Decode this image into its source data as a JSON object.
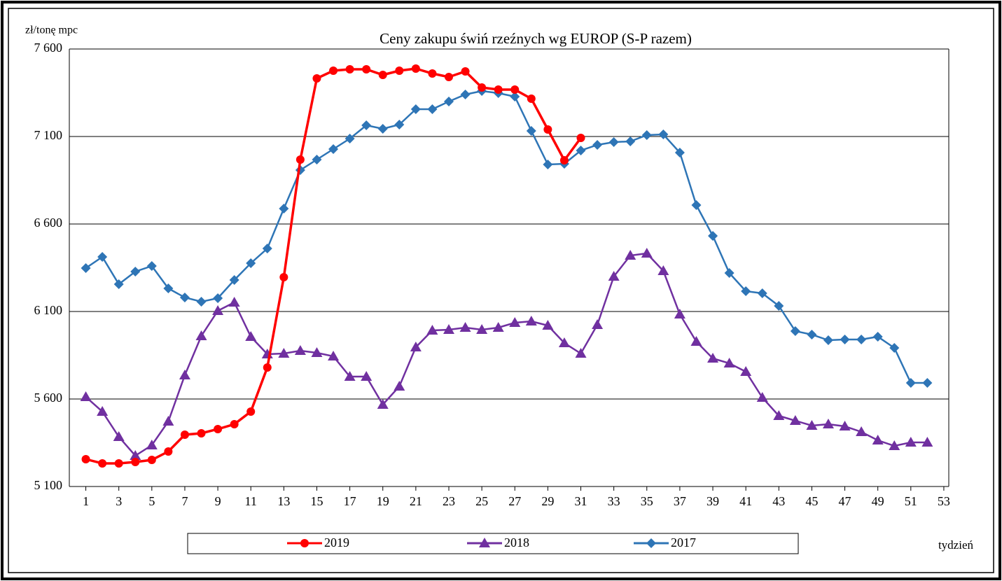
{
  "chart_data": {
    "type": "line",
    "title": "Ceny zakupu świń rzeźnych wg EUROP (S-P razem)",
    "y_label": "zł/tonę  mpc",
    "x_label": "tydzień",
    "x": [
      1,
      2,
      3,
      4,
      5,
      6,
      7,
      8,
      9,
      10,
      11,
      12,
      13,
      14,
      15,
      16,
      17,
      18,
      19,
      20,
      21,
      22,
      23,
      24,
      25,
      26,
      27,
      28,
      29,
      30,
      31,
      32,
      33,
      34,
      35,
      36,
      37,
      38,
      39,
      40,
      41,
      42,
      43,
      44,
      45,
      46,
      47,
      48,
      49,
      50,
      51,
      52
    ],
    "xlim": [
      0,
      53.3
    ],
    "xticks": [
      1,
      3,
      5,
      7,
      9,
      11,
      13,
      15,
      17,
      19,
      21,
      23,
      25,
      27,
      29,
      31,
      33,
      35,
      37,
      39,
      41,
      43,
      45,
      47,
      49,
      51,
      53
    ],
    "ylim": [
      5100,
      7600
    ],
    "yticks": [
      {
        "value": 5100,
        "label": "5 100"
      },
      {
        "value": 5600,
        "label": "5 600"
      },
      {
        "value": 6100,
        "label": "6 100"
      },
      {
        "value": 6600,
        "label": "6 600"
      },
      {
        "value": 7100,
        "label": "7 100"
      },
      {
        "value": 7600,
        "label": "7 600"
      }
    ],
    "grid": true,
    "legend": "bottom",
    "series": [
      {
        "name": "2019",
        "color": "#ff0000",
        "marker": "circle",
        "values": [
          5256,
          5232,
          5232,
          5240,
          5252,
          5300,
          5396,
          5404,
          5428,
          5456,
          5528,
          5780,
          6296,
          6968,
          7432,
          7476,
          7484,
          7484,
          7452,
          7476,
          7488,
          7460,
          7440,
          7472,
          7380,
          7368,
          7368,
          7316,
          7140,
          6964,
          7092,
          null,
          null,
          null,
          null,
          null,
          null,
          null,
          null,
          null,
          null,
          null,
          null,
          null,
          null,
          null,
          null,
          null,
          null,
          null,
          null,
          null
        ]
      },
      {
        "name": "2018",
        "color": "#7030a0",
        "marker": "triangle",
        "values": [
          5612,
          5528,
          5384,
          5276,
          5336,
          5472,
          5736,
          5960,
          6104,
          6152,
          5956,
          5856,
          5860,
          5876,
          5864,
          5844,
          5728,
          5728,
          5568,
          5672,
          5896,
          5992,
          5996,
          6008,
          5996,
          6008,
          6036,
          6044,
          6020,
          5920,
          5860,
          6024,
          6300,
          6420,
          6432,
          6332,
          6084,
          5928,
          5832,
          5804,
          5756,
          5608,
          5504,
          5476,
          5448,
          5456,
          5444,
          5412,
          5364,
          5332,
          5352,
          5352
        ]
      },
      {
        "name": "2017",
        "color": "#2e75b6",
        "marker": "diamond",
        "values": [
          6348,
          6412,
          6256,
          6328,
          6360,
          6232,
          6180,
          6156,
          6176,
          6280,
          6376,
          6460,
          6688,
          6908,
          6968,
          7028,
          7088,
          7164,
          7144,
          7168,
          7256,
          7256,
          7300,
          7340,
          7360,
          7348,
          7328,
          7132,
          6940,
          6944,
          7020,
          7052,
          7068,
          7072,
          7108,
          7112,
          7008,
          6708,
          6532,
          6320,
          6216,
          6204,
          6132,
          5988,
          5968,
          5936,
          5940,
          5940,
          5956,
          5892,
          5692,
          5692
        ]
      }
    ]
  }
}
